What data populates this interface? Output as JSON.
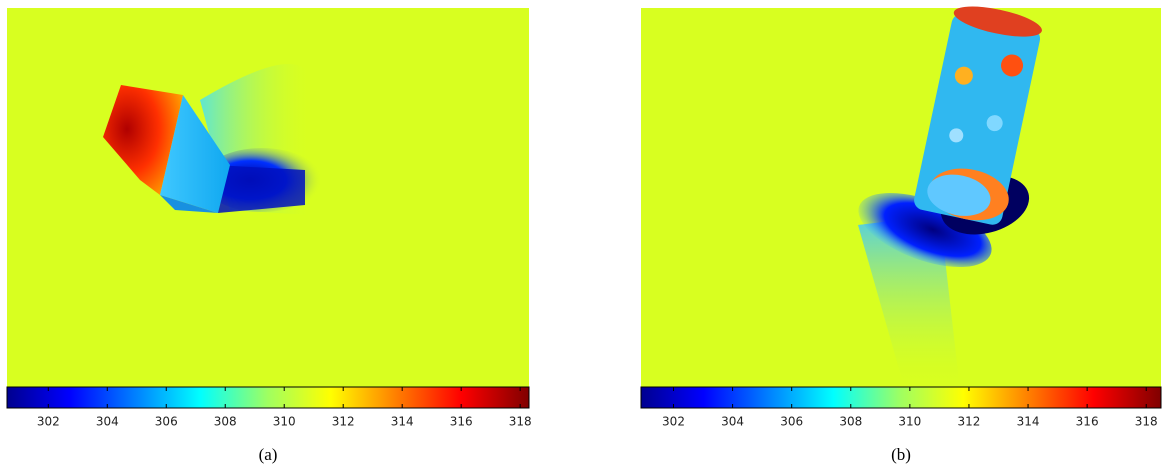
{
  "panels": [
    {
      "caption": "(a)",
      "colorbar": {
        "lim": [
          300.6,
          318.3
        ],
        "ticks": [
          302,
          304,
          306,
          308,
          310,
          312,
          314,
          316,
          318
        ]
      }
    },
    {
      "caption": "(b)",
      "colorbar": {
        "lim": [
          300.9,
          318.5
        ],
        "ticks": [
          302,
          304,
          306,
          308,
          310,
          312,
          314,
          316,
          318
        ]
      }
    }
  ]
}
